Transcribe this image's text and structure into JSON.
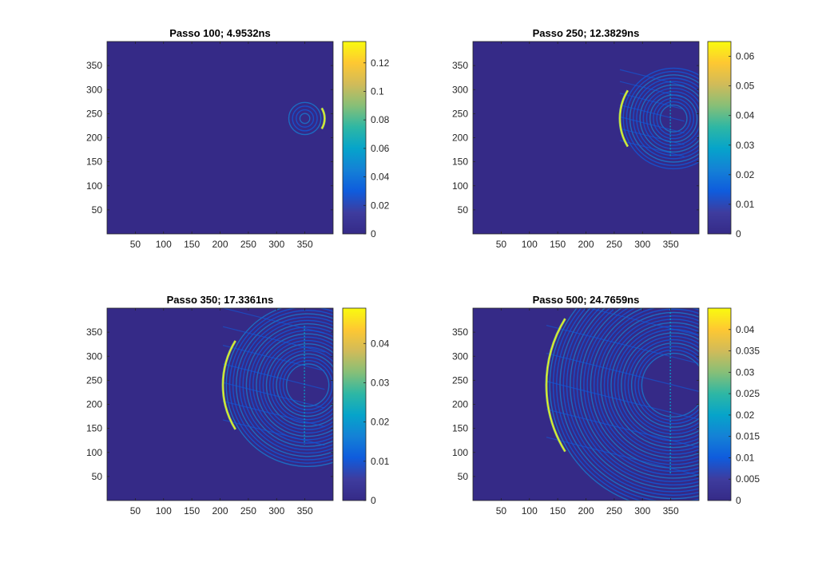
{
  "chart_data": [
    {
      "type": "heatmap",
      "title": "Passo 100; 4.9532ns",
      "xlim": [
        0,
        400
      ],
      "ylim": [
        0,
        400
      ],
      "xticks": [
        "50",
        "100",
        "150",
        "200",
        "250",
        "300",
        "350"
      ],
      "yticks": [
        "50",
        "100",
        "150",
        "200",
        "250",
        "300",
        "350"
      ],
      "colorbar": {
        "min": 0,
        "max": 0.135,
        "ticks": [
          "0",
          "0.02",
          "0.04",
          "0.06",
          "0.08",
          "0.1",
          "0.12"
        ]
      },
      "wave": {
        "cx": 350,
        "cy": 240,
        "front": 35,
        "leftward": false
      },
      "colormap": "parula"
    },
    {
      "type": "heatmap",
      "title": "Passo 250; 12.3829ns",
      "xlim": [
        0,
        400
      ],
      "ylim": [
        0,
        400
      ],
      "xticks": [
        "50",
        "100",
        "150",
        "200",
        "250",
        "300",
        "350"
      ],
      "yticks": [
        "50",
        "100",
        "150",
        "200",
        "250",
        "300",
        "350"
      ],
      "colorbar": {
        "min": 0,
        "max": 0.065,
        "ticks": [
          "0",
          "0.01",
          "0.02",
          "0.03",
          "0.04",
          "0.05",
          "0.06"
        ]
      },
      "wave": {
        "cx": 355,
        "cy": 240,
        "front": 95,
        "leftward": true
      },
      "colormap": "parula"
    },
    {
      "type": "heatmap",
      "title": "Passo 350; 17.3361ns",
      "xlim": [
        0,
        400
      ],
      "ylim": [
        0,
        400
      ],
      "xticks": [
        "50",
        "100",
        "150",
        "200",
        "250",
        "300",
        "350"
      ],
      "yticks": [
        "50",
        "100",
        "150",
        "200",
        "250",
        "300",
        "350"
      ],
      "colorbar": {
        "min": 0,
        "max": 0.049,
        "ticks": [
          "0",
          "0.01",
          "0.02",
          "0.03",
          "0.04"
        ]
      },
      "wave": {
        "cx": 355,
        "cy": 240,
        "front": 150,
        "leftward": true
      },
      "colormap": "parula"
    },
    {
      "type": "heatmap",
      "title": "Passo 500; 24.7659ns",
      "xlim": [
        0,
        400
      ],
      "ylim": [
        0,
        400
      ],
      "xticks": [
        "50",
        "100",
        "150",
        "200",
        "250",
        "300",
        "350"
      ],
      "yticks": [
        "50",
        "100",
        "150",
        "200",
        "250",
        "300",
        "350"
      ],
      "colorbar": {
        "min": 0,
        "max": 0.045,
        "ticks": [
          "0",
          "0.005",
          "0.01",
          "0.015",
          "0.02",
          "0.025",
          "0.03",
          "0.035",
          "0.04"
        ]
      },
      "wave": {
        "cx": 355,
        "cy": 240,
        "front": 225,
        "leftward": true
      },
      "colormap": "parula"
    }
  ]
}
